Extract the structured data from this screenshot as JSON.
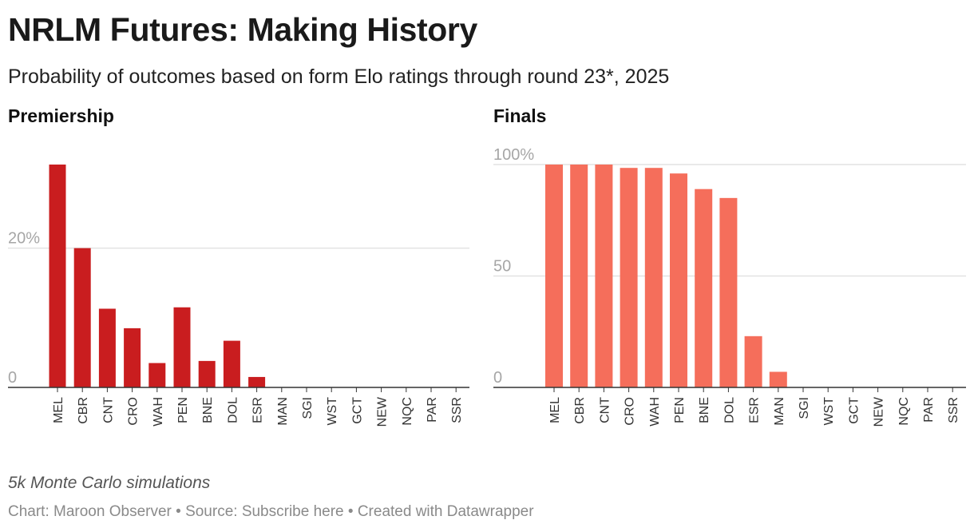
{
  "title": "NRLM Futures: Making History",
  "subtitle": "Probability of outcomes based on form Elo ratings through round 23*, 2025",
  "footnote": "5k Monte Carlo simulations",
  "credits": "Chart: Maroon Observer • Source: Subscribe here • Created with Datawrapper",
  "chart_data": [
    {
      "type": "bar",
      "title": "Premiership",
      "categories": [
        "MEL",
        "CBR",
        "CNT",
        "CRO",
        "WAH",
        "PEN",
        "BNE",
        "DOL",
        "ESR",
        "MAN",
        "SGI",
        "WST",
        "GCT",
        "NEW",
        "NQC",
        "PAR",
        "SSR"
      ],
      "values": [
        32,
        20,
        11.3,
        8.5,
        3.5,
        11.5,
        3.8,
        6.7,
        1.5,
        0,
        0,
        0,
        0,
        0,
        0,
        0,
        0
      ],
      "ylim": [
        0,
        32
      ],
      "yticks": [
        0,
        20
      ],
      "ytick_labels": [
        "0",
        "20%"
      ],
      "grid": true,
      "color": "#c91d1f"
    },
    {
      "type": "bar",
      "title": "Finals",
      "categories": [
        "MEL",
        "CBR",
        "CNT",
        "CRO",
        "WAH",
        "PEN",
        "BNE",
        "DOL",
        "ESR",
        "MAN",
        "SGI",
        "WST",
        "GCT",
        "NEW",
        "NQC",
        "PAR",
        "SSR"
      ],
      "values": [
        100,
        100,
        100,
        98.5,
        98.5,
        96,
        89,
        85,
        23,
        7,
        0,
        0,
        0,
        0,
        0,
        0,
        0
      ],
      "ylim": [
        0,
        100
      ],
      "yticks": [
        0,
        50,
        100
      ],
      "ytick_labels": [
        "0",
        "50",
        "100%"
      ],
      "grid": true,
      "color": "#f56e5b"
    }
  ]
}
